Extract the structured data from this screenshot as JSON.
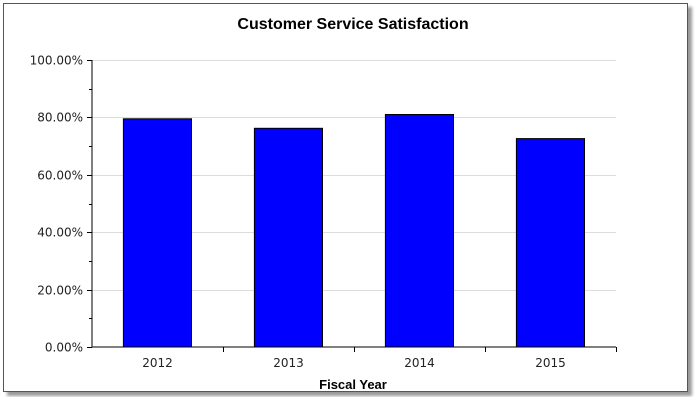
{
  "chart_data": {
    "type": "bar",
    "title": "Customer Service Satisfaction",
    "xlabel": "Fiscal Year",
    "ylabel": "",
    "categories": [
      "2012",
      "2013",
      "2014",
      "2015"
    ],
    "values": [
      79.5,
      76.2,
      81.0,
      72.6
    ],
    "ylim": [
      0,
      100
    ],
    "yticks": [
      0,
      20,
      40,
      60,
      80,
      100
    ],
    "ytick_labels": [
      "0.00%",
      "20.00%",
      "40.00%",
      "60.00%",
      "80.00%",
      "100.00%"
    ],
    "grid": true,
    "legend": "none",
    "colors": {
      "bar": "#0000ff",
      "bar_outline": "#000000",
      "grid": "#dddddd"
    }
  }
}
